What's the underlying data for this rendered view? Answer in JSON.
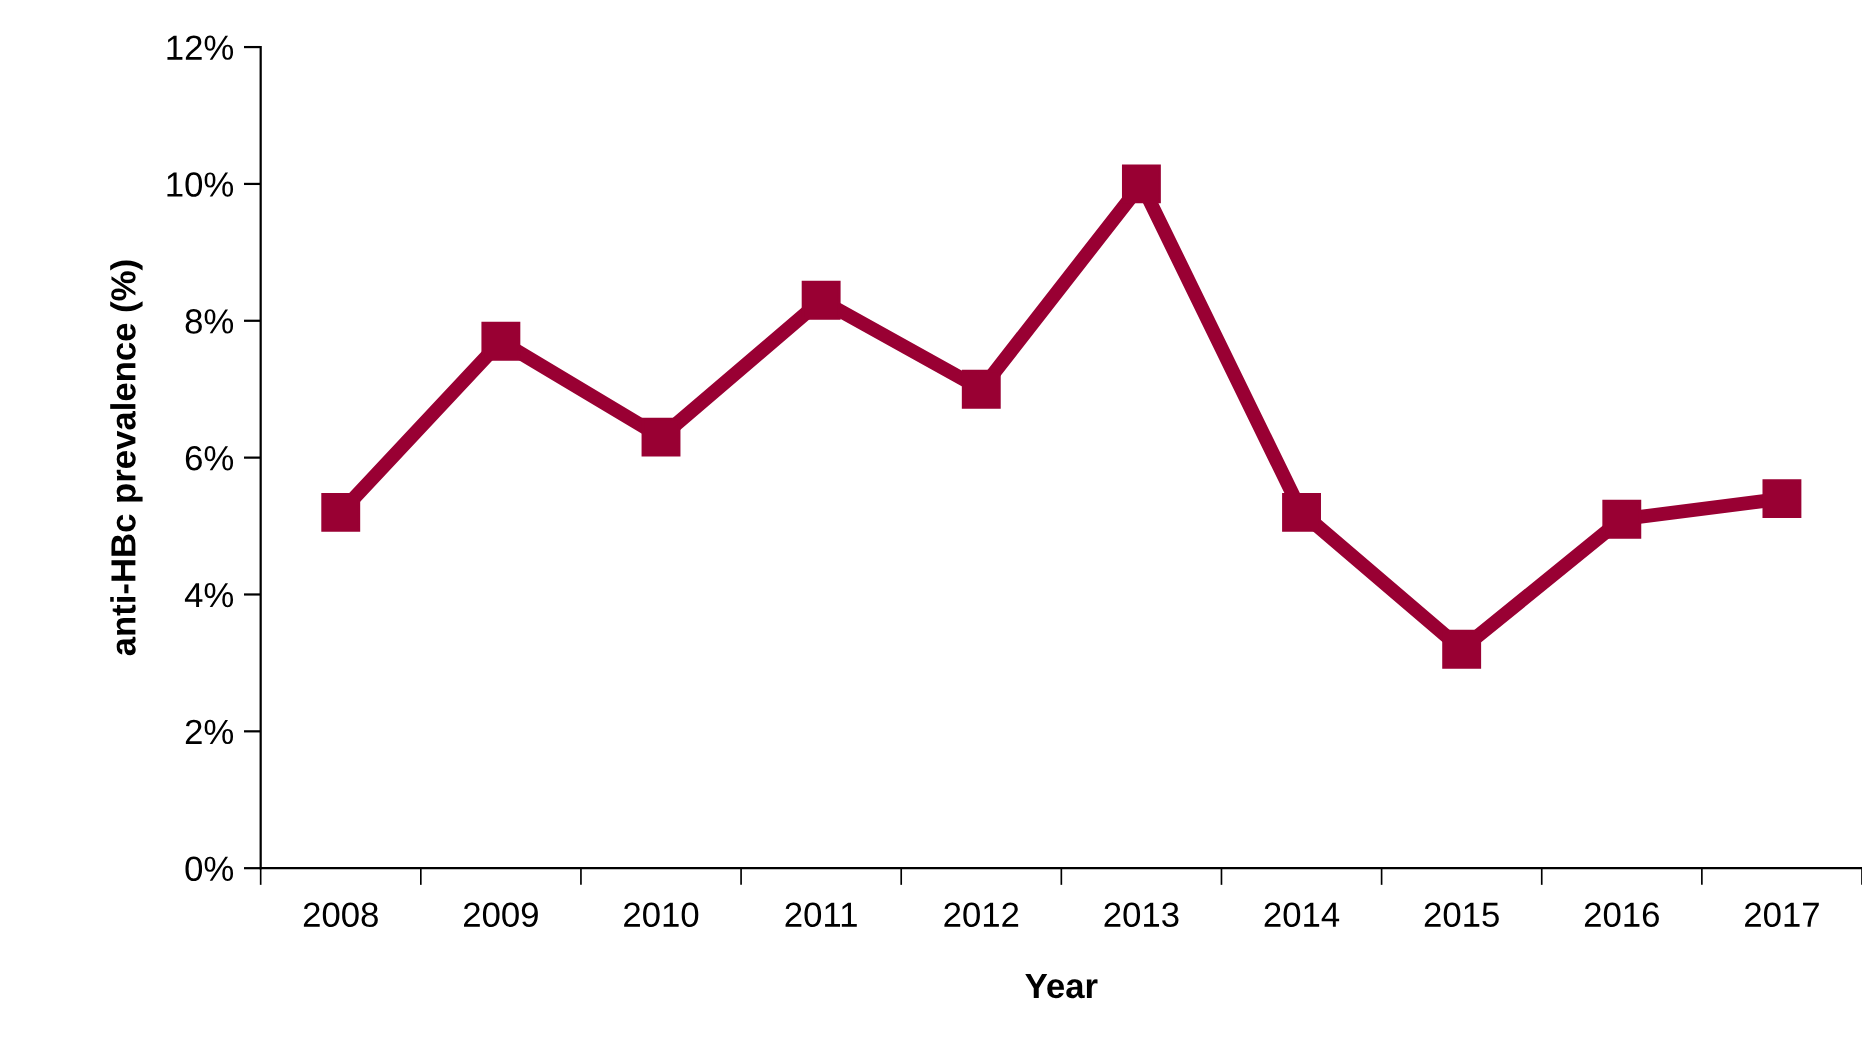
{
  "chart_data": {
    "type": "line",
    "xlabel": "Year",
    "ylabel": "anti-HBc prevalence (%)",
    "categories": [
      "2008",
      "2009",
      "2010",
      "2011",
      "2012",
      "2013",
      "2014",
      "2015",
      "2016",
      "2017"
    ],
    "series": [
      {
        "color": "#990033",
        "values": [
          5.2,
          7.7,
          6.3,
          8.3,
          7.0,
          10.0,
          5.2,
          3.2,
          5.1,
          5.4
        ]
      }
    ],
    "ylim": [
      0,
      12
    ],
    "yticks": [
      {
        "value": 0,
        "label": "0%"
      },
      {
        "value": 2,
        "label": "2%"
      },
      {
        "value": 4,
        "label": "4%"
      },
      {
        "value": 6,
        "label": "6%"
      },
      {
        "value": 8,
        "label": "8%"
      },
      {
        "value": 10,
        "label": "10%"
      },
      {
        "value": 12,
        "label": "12%"
      }
    ],
    "grid": false,
    "legend": false,
    "marker": "square",
    "line_style": "solid"
  }
}
